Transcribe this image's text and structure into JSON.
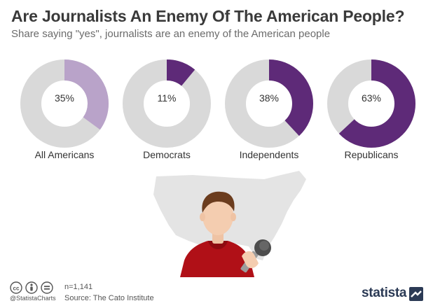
{
  "header": {
    "title": "Are Journalists An Enemy Of The American People?",
    "subtitle": "Share saying \"yes\", journalists are an enemy of the American people"
  },
  "chart_data": {
    "type": "pie",
    "title": "Are Journalists An Enemy Of The American People?",
    "subtitle": "Share saying \"yes\", journalists are an enemy of the American people",
    "unit": "%",
    "categories": [
      "All Americans",
      "Democrats",
      "Independents",
      "Republicans"
    ],
    "values": [
      35,
      11,
      38,
      63
    ],
    "value_labels": [
      "35%",
      "11%",
      "38%",
      "63%"
    ],
    "colors": [
      "#b9a3c9",
      "#5e2a78",
      "#5e2a78",
      "#5e2a78"
    ],
    "track_color": "#d9d9d9"
  },
  "footer": {
    "sample": "n=1,141",
    "source": "Source: The Cato Institute",
    "handle": "@StatistaCharts",
    "logo": "statista",
    "license_icons": [
      "cc-icon",
      "attribution-icon",
      "no-derivatives-icon"
    ]
  },
  "illustration": {
    "map": "us-map-silhouette",
    "figure": "reporter-with-microphone"
  }
}
